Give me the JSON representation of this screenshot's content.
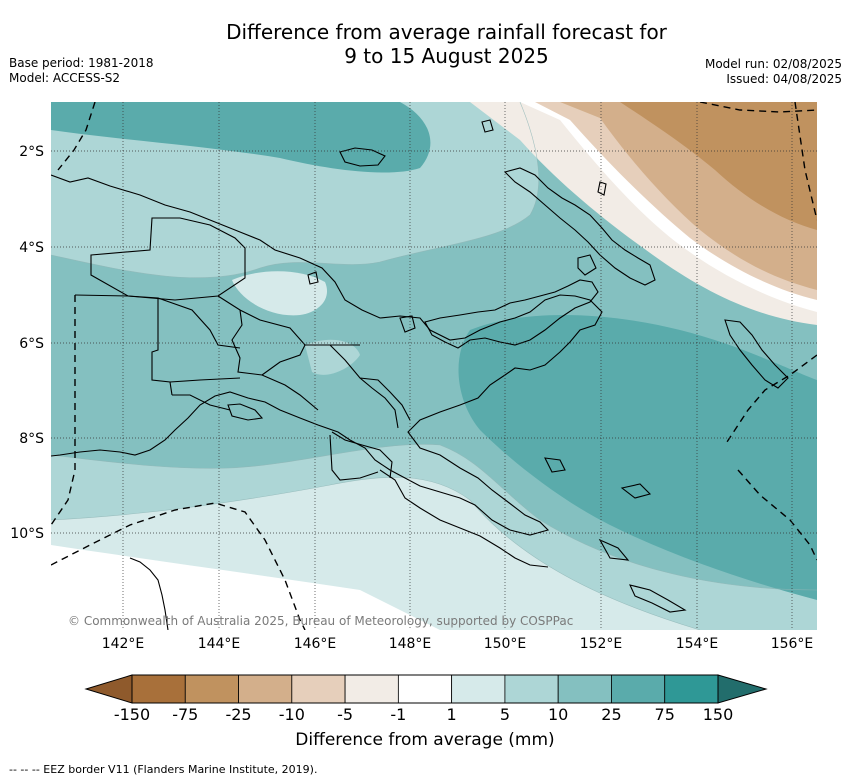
{
  "header": {
    "title_line1": "Difference from average rainfall forecast for",
    "title_line2": "9 to 15 August 2025",
    "base_period": "Base period: 1981-2018",
    "model": "Model: ACCESS-S2",
    "model_run": "Model run: 02/08/2025",
    "issued": "Issued: 04/08/2025"
  },
  "map": {
    "lat_labels": [
      "2°S",
      "4°S",
      "6°S",
      "8°S",
      "10°S"
    ],
    "lon_labels": [
      "142°E",
      "144°E",
      "146°E",
      "148°E",
      "150°E",
      "152°E",
      "154°E",
      "156°E"
    ],
    "copyright": "© Commonwealth of Australia 2025, Bureau of Meteorology, supported by COSPPac"
  },
  "colorbar": {
    "tick_labels": [
      "-150",
      "-75",
      "-25",
      "-10",
      "-5",
      "-1",
      "1",
      "5",
      "10",
      "25",
      "75",
      "150"
    ],
    "colors": [
      "#a8703a",
      "#c0925f",
      "#d3af8b",
      "#e6cfbb",
      "#f2ece6",
      "#ffffff",
      "#d6eaea",
      "#add6d6",
      "#84c0c0",
      "#5aabab",
      "#2f9896"
    ],
    "under_color": "#8f5a2c",
    "over_color": "#226d6c",
    "label": "Difference from average (mm)"
  },
  "footer": {
    "eez_legend": "--  --  -- EEZ border V11 (Flanders Marine Institute, 2019)."
  }
}
